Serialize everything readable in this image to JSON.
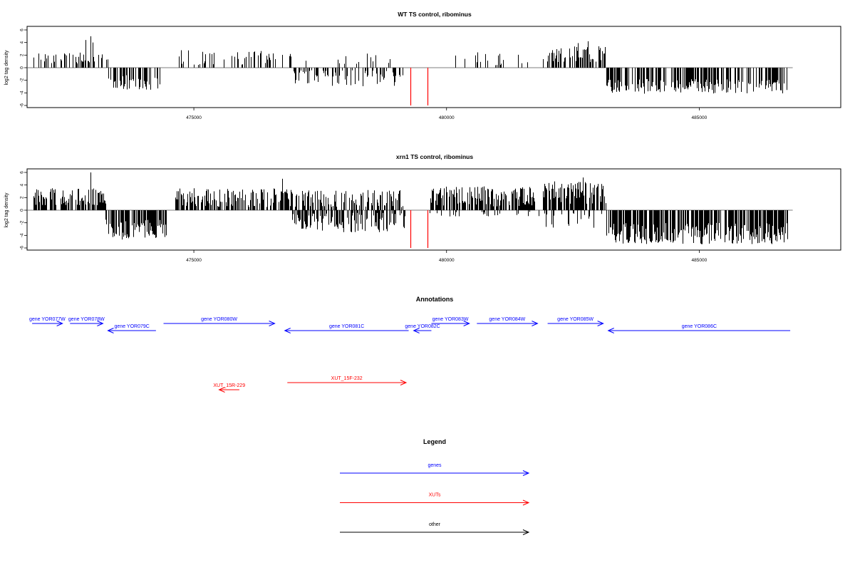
{
  "chart_data": [
    {
      "type": "bar",
      "title": "WT TS control, ribominus",
      "ylabel": "log2 tag density",
      "xlim": [
        471700,
        487800
      ],
      "ylim": [
        -6,
        6
      ],
      "xticks": [
        475000,
        480000,
        485000
      ],
      "xtick_labels": [
        "475000",
        "480000",
        "485000"
      ],
      "yticks": [
        -6,
        -4,
        -2,
        0,
        2,
        4,
        6
      ],
      "ytick_labels": [
        "-6",
        "-4",
        "-2",
        "0",
        "2",
        "4",
        "6"
      ],
      "grid": false,
      "baseline": {
        "from": 471700,
        "to": 486850,
        "y": 0
      },
      "segments": [
        {
          "from": 471800,
          "to": 473300,
          "sign": 1,
          "amp": [
            0.6,
            2.4
          ],
          "n": 55
        },
        {
          "from": 473300,
          "to": 474350,
          "sign": -1,
          "amp": [
            1.2,
            3.5
          ],
          "n": 58
        },
        {
          "from": 474650,
          "to": 476950,
          "sign": 1,
          "amp": [
            0.4,
            2.8
          ],
          "n": 50
        },
        {
          "from": 476950,
          "to": 479150,
          "sign": -1,
          "amp": [
            0.4,
            3.0
          ],
          "n": 70
        },
        {
          "from": 477200,
          "to": 478950,
          "sign": 1,
          "amp": [
            0.6,
            2.4
          ],
          "n": 14
        },
        {
          "from": 480050,
          "to": 481750,
          "sign": 1,
          "amp": [
            0.4,
            2.5
          ],
          "n": 20
        },
        {
          "from": 481900,
          "to": 483150,
          "sign": 1,
          "amp": [
            0.8,
            3.4
          ],
          "n": 75
        },
        {
          "from": 483150,
          "to": 486750,
          "sign": -1,
          "amp": [
            1.8,
            4.2
          ],
          "n": 220
        }
      ],
      "spikes": [
        {
          "x": 472950,
          "y": 5.0
        },
        {
          "x": 472850,
          "y": 4.4
        },
        {
          "x": 473000,
          "y": 4.0
        },
        {
          "x": 482800,
          "y": 4.2
        },
        {
          "x": 482600,
          "y": 3.9
        }
      ],
      "highlight_bars": [
        {
          "x": 479280,
          "y": -6,
          "color": "#ff0000"
        },
        {
          "x": 479620,
          "y": -6,
          "color": "#ff0000"
        }
      ]
    },
    {
      "type": "bar",
      "title": "xrn1 TS control, ribominus",
      "ylabel": "log2 tag density",
      "xlim": [
        471700,
        487800
      ],
      "ylim": [
        -6,
        6
      ],
      "xticks": [
        475000,
        480000,
        485000
      ],
      "xtick_labels": [
        "475000",
        "480000",
        "485000"
      ],
      "yticks": [
        -6,
        -4,
        -2,
        0,
        2,
        4,
        6
      ],
      "ytick_labels": [
        "-6",
        "-4",
        "-2",
        "0",
        "2",
        "4",
        "6"
      ],
      "grid": false,
      "baseline": {
        "from": 471700,
        "to": 486850,
        "y": 0
      },
      "segments": [
        {
          "from": 471800,
          "to": 473250,
          "sign": 1,
          "amp": [
            0.8,
            3.5
          ],
          "n": 120
        },
        {
          "from": 473250,
          "to": 474450,
          "sign": -1,
          "amp": [
            1.5,
            4.8
          ],
          "n": 110
        },
        {
          "from": 474600,
          "to": 477000,
          "sign": 1,
          "amp": [
            0.5,
            3.5
          ],
          "n": 160
        },
        {
          "from": 476950,
          "to": 479200,
          "sign": -1,
          "amp": [
            0.4,
            3.5
          ],
          "n": 120
        },
        {
          "from": 477000,
          "to": 479150,
          "sign": 1,
          "amp": [
            0.5,
            3.2
          ],
          "n": 110
        },
        {
          "from": 479650,
          "to": 481750,
          "sign": 1,
          "amp": [
            0.6,
            3.8
          ],
          "n": 180
        },
        {
          "from": 479650,
          "to": 481700,
          "sign": -1,
          "amp": [
            0.2,
            1.0
          ],
          "n": 25
        },
        {
          "from": 481900,
          "to": 483150,
          "sign": 1,
          "amp": [
            0.8,
            4.6
          ],
          "n": 150
        },
        {
          "from": 481700,
          "to": 483100,
          "sign": -1,
          "amp": [
            0.3,
            2.8
          ],
          "n": 20
        },
        {
          "from": 483150,
          "to": 486750,
          "sign": -1,
          "amp": [
            2.0,
            5.4
          ],
          "n": 340
        }
      ],
      "spikes": [
        {
          "x": 472950,
          "y": 6.0
        },
        {
          "x": 482700,
          "y": 5.2
        },
        {
          "x": 476750,
          "y": 5.0
        }
      ],
      "highlight_bars": [
        {
          "x": 479280,
          "y": -6,
          "color": "#ff0000"
        },
        {
          "x": 479620,
          "y": -6,
          "color": "#ff0000"
        }
      ]
    }
  ],
  "annotations": {
    "title": "Annotations",
    "genes_color": "#0000ff",
    "xuts_color": "#ff0000",
    "items": [
      {
        "label": "gene YOR077W",
        "from": 471800,
        "to": 472400,
        "row": 0,
        "dir": "right",
        "kind": "gene"
      },
      {
        "label": "gene YOR078W",
        "from": 472550,
        "to": 473200,
        "row": 0,
        "dir": "right",
        "kind": "gene"
      },
      {
        "label": "gene YOR079C",
        "from": 473300,
        "to": 474250,
        "row": 1,
        "dir": "left",
        "kind": "gene"
      },
      {
        "label": "gene YOR080W",
        "from": 474400,
        "to": 476600,
        "row": 0,
        "dir": "right",
        "kind": "gene"
      },
      {
        "label": "gene YOR081C",
        "from": 476800,
        "to": 479250,
        "row": 1,
        "dir": "left",
        "kind": "gene"
      },
      {
        "label": "gene YOR082C",
        "from": 479350,
        "to": 479700,
        "row": 1,
        "dir": "left",
        "kind": "gene"
      },
      {
        "label": "gene YOR083W",
        "from": 479700,
        "to": 480450,
        "row": 0,
        "dir": "right",
        "kind": "gene"
      },
      {
        "label": "gene YOR084W",
        "from": 480600,
        "to": 481800,
        "row": 0,
        "dir": "right",
        "kind": "gene"
      },
      {
        "label": "gene YOR085W",
        "from": 482000,
        "to": 483100,
        "row": 0,
        "dir": "right",
        "kind": "gene"
      },
      {
        "label": "gene YOR086C",
        "from": 483200,
        "to": 486800,
        "row": 1,
        "dir": "left",
        "kind": "gene"
      },
      {
        "label": "XUT_15F-232",
        "from": 476850,
        "to": 479200,
        "row": 3,
        "dir": "right",
        "kind": "xut"
      },
      {
        "label": "XUT_15R-229",
        "from": 475500,
        "to": 475900,
        "row": 4,
        "dir": "left",
        "kind": "xut"
      }
    ]
  },
  "legend": {
    "title": "Legend",
    "items": [
      {
        "label": "genes",
        "color": "#0000ff"
      },
      {
        "label": "XUTs",
        "color": "#ff0000"
      },
      {
        "label": "other",
        "color": "#000000"
      }
    ]
  }
}
